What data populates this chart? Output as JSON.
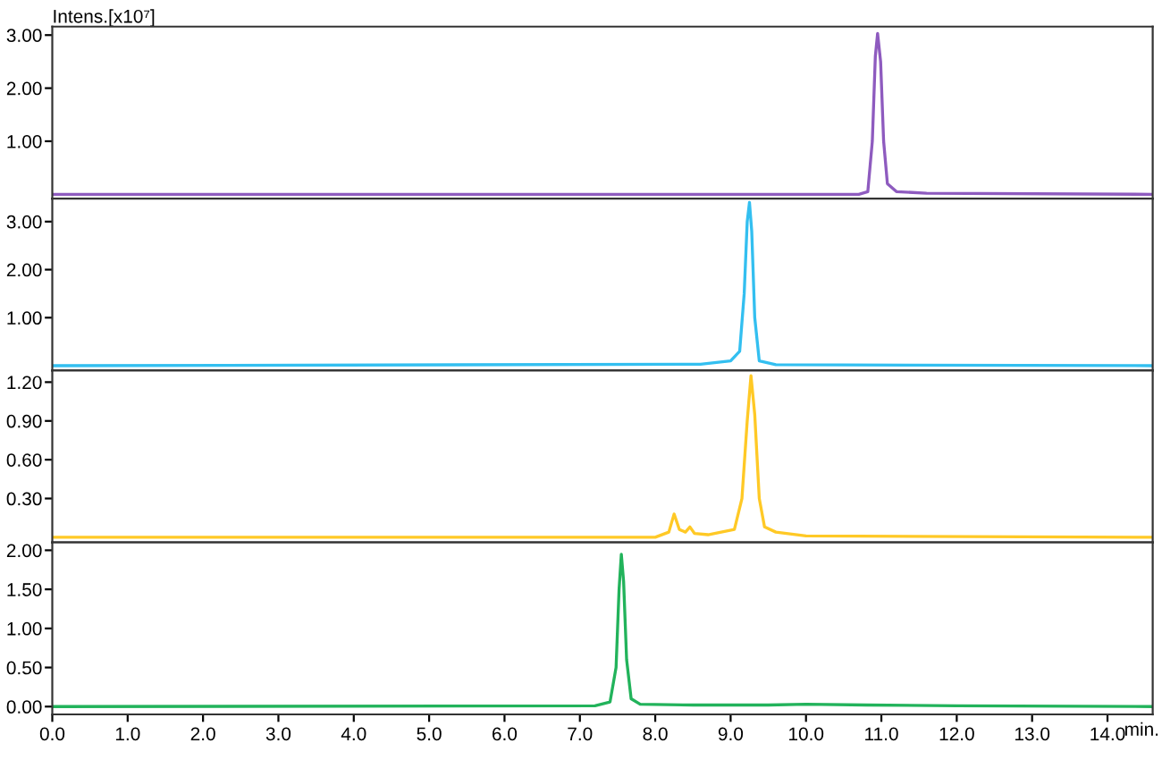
{
  "chart_data": [
    {
      "type": "line",
      "ylabel": "Intens.[x10⁷]",
      "xlim": [
        0,
        14.6
      ],
      "ylim": [
        -0.08,
        3.16
      ],
      "yticks": [
        {
          "value": 1,
          "label": "1.00"
        },
        {
          "value": 2,
          "label": "2.00"
        },
        {
          "value": 3,
          "label": "3.00"
        }
      ],
      "tick_labels": "y",
      "grid": false,
      "legend": false,
      "series": [
        {
          "color": "#8e5bbf",
          "x": [
            0,
            10.7,
            10.82,
            10.88,
            10.92,
            10.95,
            10.99,
            11.03,
            11.08,
            11.2,
            11.6,
            14.6
          ],
          "values": [
            0,
            0,
            0.05,
            1.0,
            2.6,
            3.03,
            2.5,
            1.0,
            0.2,
            0.05,
            0.02,
            0
          ]
        }
      ]
    },
    {
      "type": "line",
      "xlim": [
        0,
        14.6
      ],
      "ylim": [
        -0.1,
        3.48
      ],
      "yticks": [
        {
          "value": 1,
          "label": "1.00"
        },
        {
          "value": 2,
          "label": "2.00"
        },
        {
          "value": 3,
          "label": "3.00"
        }
      ],
      "tick_labels": "y",
      "grid": false,
      "legend": false,
      "series": [
        {
          "color": "#33bff0",
          "x": [
            0,
            8.6,
            9.0,
            9.12,
            9.18,
            9.22,
            9.25,
            9.28,
            9.32,
            9.38,
            9.6,
            14.6
          ],
          "values": [
            0,
            0.03,
            0.1,
            0.3,
            1.5,
            3.0,
            3.4,
            2.8,
            1.0,
            0.1,
            0.02,
            0
          ]
        }
      ]
    },
    {
      "type": "line",
      "xlim": [
        0,
        14.6
      ],
      "ylim": [
        -0.04,
        1.29
      ],
      "yticks": [
        {
          "value": 0.3,
          "label": "0.30"
        },
        {
          "value": 0.6,
          "label": "0.60"
        },
        {
          "value": 0.9,
          "label": "0.90"
        },
        {
          "value": 1.2,
          "label": "1.20"
        }
      ],
      "tick_labels": "y",
      "grid": false,
      "legend": false,
      "series": [
        {
          "color": "#ffc926",
          "x": [
            0,
            8.0,
            8.18,
            8.25,
            8.32,
            8.4,
            8.46,
            8.52,
            8.7,
            9.05,
            9.15,
            9.22,
            9.27,
            9.32,
            9.38,
            9.45,
            9.6,
            10.0,
            14.6
          ],
          "values": [
            0,
            0,
            0.04,
            0.18,
            0.06,
            0.04,
            0.08,
            0.03,
            0.02,
            0.06,
            0.3,
            0.9,
            1.25,
            0.95,
            0.3,
            0.08,
            0.04,
            0.01,
            0
          ]
        }
      ]
    },
    {
      "type": "line",
      "xlabel": "min.",
      "xlim": [
        0,
        14.6
      ],
      "xticks": [
        {
          "value": 0,
          "label": "0.0"
        },
        {
          "value": 1,
          "label": "1.0"
        },
        {
          "value": 2,
          "label": "2.0"
        },
        {
          "value": 3,
          "label": "3.0"
        },
        {
          "value": 4,
          "label": "4.0"
        },
        {
          "value": 5,
          "label": "5.0"
        },
        {
          "value": 6,
          "label": "6.0"
        },
        {
          "value": 7,
          "label": "7.0"
        },
        {
          "value": 8,
          "label": "8.0"
        },
        {
          "value": 9,
          "label": "9.0"
        },
        {
          "value": 10,
          "label": "10.0"
        },
        {
          "value": 11,
          "label": "11.0"
        },
        {
          "value": 12,
          "label": "12.0"
        },
        {
          "value": 13,
          "label": "13.0"
        },
        {
          "value": 14,
          "label": "14.0"
        }
      ],
      "ylim": [
        -0.1,
        2.1
      ],
      "yticks": [
        {
          "value": 0,
          "label": "0.00"
        },
        {
          "value": 0.5,
          "label": "0.50"
        },
        {
          "value": 1,
          "label": "1.00"
        },
        {
          "value": 1.5,
          "label": "1.50"
        },
        {
          "value": 2,
          "label": "2.00"
        }
      ],
      "grid": false,
      "legend": false,
      "series": [
        {
          "color": "#22b35b",
          "x": [
            0,
            7.2,
            7.4,
            7.48,
            7.52,
            7.55,
            7.58,
            7.62,
            7.68,
            7.8,
            8.5,
            9.5,
            10.0,
            10.8,
            12.0,
            14.6
          ],
          "values": [
            0,
            0.01,
            0.06,
            0.5,
            1.5,
            1.95,
            1.6,
            0.6,
            0.1,
            0.03,
            0.02,
            0.02,
            0.03,
            0.02,
            0.01,
            0
          ]
        }
      ]
    }
  ]
}
